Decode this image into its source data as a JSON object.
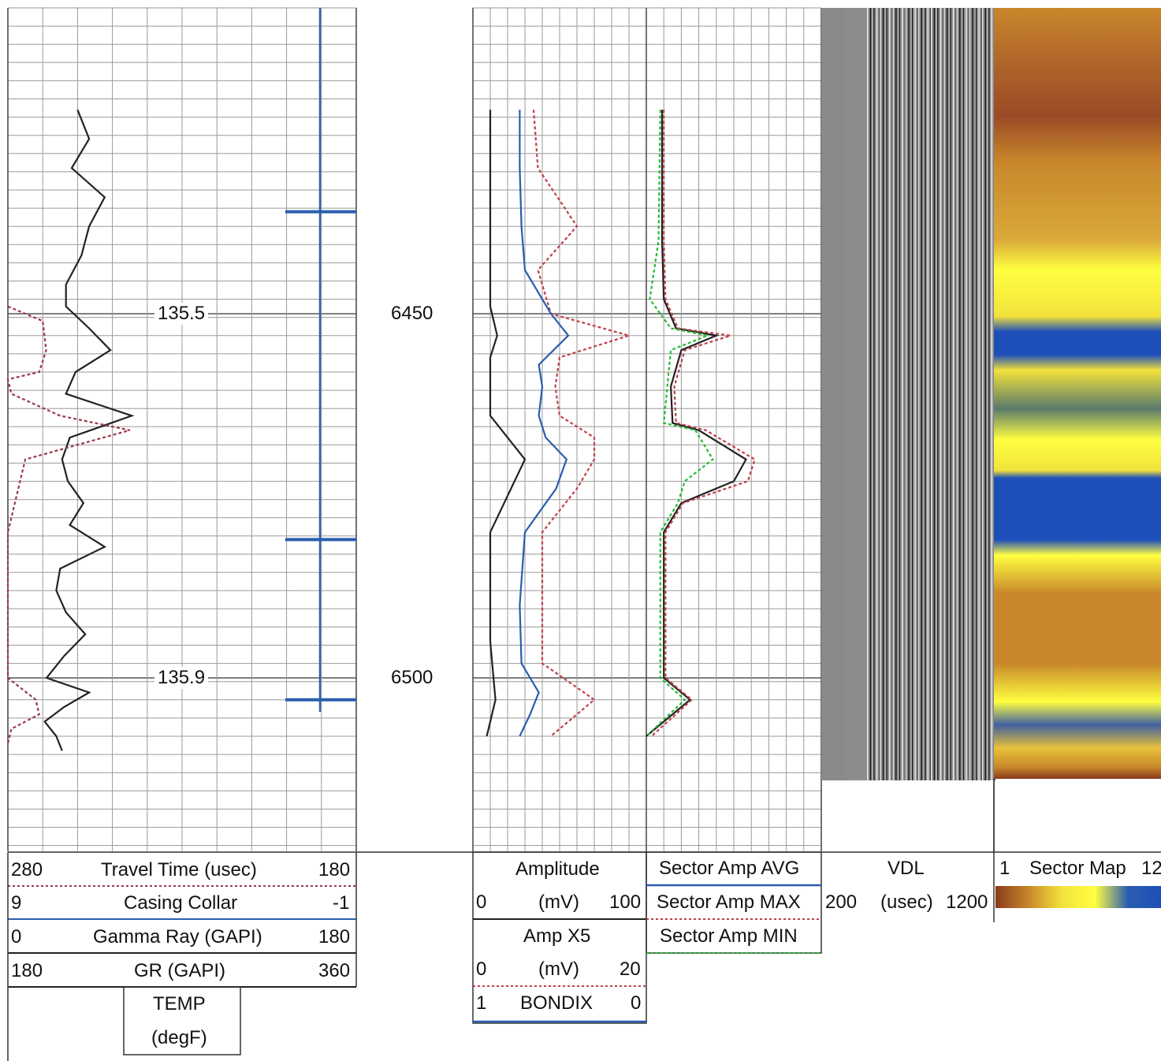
{
  "track_labels": {
    "temp_top": "135.5",
    "temp_bottom": "135.9",
    "depth_top": "6450",
    "depth_bottom": "6500"
  },
  "headers": {
    "travel_time": {
      "left": "280",
      "name": "Travel Time (usec)",
      "right": "180",
      "color": "#9a3a4a"
    },
    "casing_collar": {
      "left": "9",
      "name": "Casing Collar",
      "right": "-1",
      "color": "#2a5db0"
    },
    "gamma_ray": {
      "left": "0",
      "name": "Gamma Ray (GAPI)",
      "right": "180",
      "color": "#222222"
    },
    "gr": {
      "left": "180",
      "name": "GR (GAPI)",
      "right": "360",
      "color": "#222222"
    },
    "temp": {
      "line1": "TEMP",
      "line2": "(degF)"
    },
    "amplitude": {
      "name": "Amplitude",
      "left": "0",
      "unit": "(mV)",
      "right": "100",
      "color": "#222222"
    },
    "amp_x5": {
      "name": "Amp X5",
      "left": "0",
      "unit": "(mV)",
      "right": "20",
      "color": "#c0404a"
    },
    "bondix": {
      "left": "1",
      "name": "BONDIX",
      "right": "0",
      "color": "#2a5db0"
    },
    "sector_avg": {
      "name": "Sector Amp AVG",
      "color": "#222222"
    },
    "sector_max": {
      "name": "Sector Amp MAX",
      "color": "#c0404a"
    },
    "sector_min": {
      "name": "Sector Amp MIN",
      "color": "#22bb33"
    },
    "vdl": {
      "name": "VDL",
      "left": "200",
      "unit": "(usec)",
      "right": "1200"
    },
    "sector_map": {
      "left": "1",
      "name": "Sector Map",
      "right": "12"
    }
  },
  "chart_data": {
    "type": "line",
    "title": "",
    "depth_unit_labels": [
      6450,
      6500
    ],
    "series": [
      {
        "name": "Gamma Ray (GAPI)",
        "color": "#222222",
        "depth": [
          6422,
          6426,
          6430,
          6434,
          6438,
          6442,
          6446,
          6449,
          6452,
          6455,
          6458,
          6461,
          6464,
          6467,
          6470,
          6473,
          6476,
          6479,
          6482,
          6485,
          6488,
          6491,
          6494,
          6497,
          6500,
          6502,
          6504,
          6506,
          6508,
          6510
        ],
        "values": [
          36,
          42,
          33,
          50,
          42,
          38,
          30,
          30,
          42,
          53,
          35,
          30,
          64,
          32,
          28,
          31,
          39,
          32,
          50,
          27,
          25,
          30,
          40,
          29,
          20,
          42,
          29,
          19,
          25,
          28
        ]
      },
      {
        "name": "Travel Time (usec)",
        "color": "#9a3a4a",
        "depth": [
          6449,
          6451,
          6455,
          6458,
          6459,
          6461,
          6464,
          6466,
          6470,
          6480,
          6500,
          6503,
          6505,
          6507,
          6509
        ],
        "values": [
          280,
          270,
          269,
          271,
          280,
          279,
          265,
          245,
          275,
          280,
          280,
          272,
          271,
          279,
          280
        ]
      },
      {
        "name": "Amplitude (mV)",
        "color": "#222222",
        "depth": [
          6422,
          6430,
          6440,
          6449,
          6453,
          6456,
          6460,
          6464,
          6470,
          6480,
          6495,
          6503,
          6508
        ],
        "values": [
          10,
          10,
          10,
          10,
          14,
          10,
          10,
          10,
          30,
          10,
          10,
          13,
          8
        ]
      },
      {
        "name": "Amp X5 (mV)",
        "color": "#c0404a",
        "depth": [
          6422,
          6430,
          6438,
          6444,
          6450,
          6453,
          6456,
          6460,
          6464,
          6467,
          6470,
          6474,
          6480,
          6488,
          6498,
          6503,
          6508
        ],
        "values": [
          7,
          7.5,
          12,
          7.5,
          9,
          18,
          10,
          9.5,
          10,
          14,
          14,
          12,
          8,
          8,
          8,
          14,
          9
        ]
      },
      {
        "name": "BONDIX",
        "color": "#2a5db0",
        "depth": [
          6422,
          6430,
          6438,
          6444,
          6450,
          6453,
          6457,
          6460,
          6464,
          6467,
          6470,
          6474,
          6480,
          6490,
          6498,
          6502,
          6505,
          6508
        ],
        "values": [
          0.73,
          0.73,
          0.72,
          0.7,
          0.55,
          0.45,
          0.62,
          0.6,
          0.62,
          0.58,
          0.46,
          0.52,
          0.7,
          0.73,
          0.72,
          0.62,
          0.67,
          0.73
        ]
      },
      {
        "name": "Sector Amp AVG",
        "color": "#222222",
        "depth": [
          6422,
          6440,
          6448,
          6452,
          6453,
          6455,
          6460,
          6465,
          6466,
          6470,
          6473,
          6476,
          6480,
          6500,
          6503,
          6508
        ],
        "values": [
          9,
          9,
          10,
          17,
          40,
          20,
          14,
          15,
          30,
          57,
          50,
          20,
          10,
          10,
          25,
          0
        ]
      },
      {
        "name": "Sector Amp MAX",
        "color": "#c0404a",
        "depth": [
          6422,
          6440,
          6448,
          6452,
          6453,
          6455,
          6460,
          6465,
          6466,
          6470,
          6473,
          6476,
          6480,
          6500,
          6503,
          6508
        ],
        "values": [
          10,
          10,
          11,
          18,
          48,
          22,
          16,
          17,
          34,
          62,
          58,
          21,
          11,
          11,
          26,
          3
        ]
      },
      {
        "name": "Sector Amp MIN",
        "color": "#22bb33",
        "depth": [
          6422,
          6440,
          6448,
          6452,
          6453,
          6455,
          6460,
          6465,
          6466,
          6470,
          6473,
          6476,
          6480,
          6500,
          6503,
          6508
        ],
        "values": [
          8,
          7,
          2,
          14,
          35,
          14,
          12,
          10,
          28,
          38,
          22,
          18,
          8,
          8,
          22,
          0
        ]
      }
    ],
    "casing_collar_depths": [
      6436,
      6481,
      6503
    ],
    "sector_map_colorscale": [
      "#8a3a1c",
      "#c8872a",
      "#f2e23c",
      "#ffff40",
      "#2a5db0",
      "#1e4fb8"
    ],
    "vdl_range": [
      200,
      1200
    ],
    "grid": true
  }
}
